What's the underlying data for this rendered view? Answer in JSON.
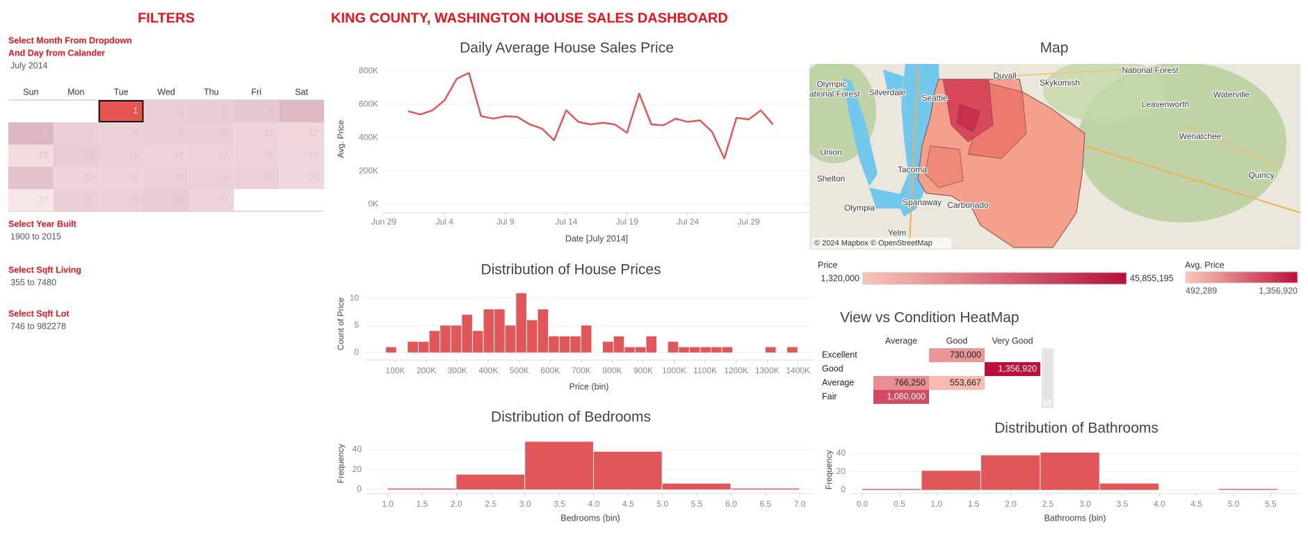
{
  "header": {
    "filters_title": "FILTERS",
    "title": "KING COUNTY, WASHINGTON HOUSE SALES DASHBOARD"
  },
  "filters": [
    {
      "label": [
        "Select Month From Dropdown",
        "And Day from Calander"
      ],
      "value": "July 2014"
    },
    {
      "label": [
        "Select Year Built"
      ],
      "value": "1900 to 2015"
    },
    {
      "label": [
        "Select Sqft Living"
      ],
      "value": "355 to 7480"
    },
    {
      "label": [
        "Select Sqft Lot"
      ],
      "value": "746 to 982278"
    }
  ],
  "calendar": {
    "weekdays": [
      "Sun",
      "Mon",
      "Tue",
      "Wed",
      "Thu",
      "Fri",
      "Sat"
    ],
    "days": [
      1,
      2,
      3,
      4,
      5,
      6,
      7,
      8,
      9,
      10,
      11,
      12,
      13,
      14,
      15,
      16,
      17,
      18,
      19,
      20,
      21,
      22,
      23,
      24,
      25,
      26,
      27,
      28,
      29,
      30,
      31
    ],
    "selected": 1
  },
  "chart_data": [
    {
      "type": "line",
      "title": "Daily Average House Sales Price",
      "x_label": "Date [July 2014]",
      "y_label": "Avg. Price",
      "color": "#e15759",
      "grid": true,
      "x": [
        "2014-07-01",
        "2014-07-02",
        "2014-07-03",
        "2014-07-04",
        "2014-07-05",
        "2014-07-06",
        "2014-07-07",
        "2014-07-08",
        "2014-07-09",
        "2014-07-10",
        "2014-07-11",
        "2014-07-12",
        "2014-07-13",
        "2014-07-14",
        "2014-07-15",
        "2014-07-16",
        "2014-07-17",
        "2014-07-18",
        "2014-07-19",
        "2014-07-20",
        "2014-07-21",
        "2014-07-22",
        "2014-07-23",
        "2014-07-24",
        "2014-07-25",
        "2014-07-26",
        "2014-07-27",
        "2014-07-28",
        "2014-07-29",
        "2014-07-30",
        "2014-07-31"
      ],
      "values": [
        560000,
        540000,
        565000,
        625000,
        755000,
        790000,
        530000,
        515000,
        530000,
        525000,
        480000,
        455000,
        385000,
        565000,
        495000,
        480000,
        490000,
        480000,
        430000,
        665000,
        480000,
        475000,
        515000,
        495000,
        505000,
        435000,
        275000,
        520000,
        510000,
        565000,
        480000
      ],
      "xlim": [
        "2014-06-29",
        "2014-08-03"
      ],
      "xticks": [
        {
          "value": "2014-06-29",
          "label": "Jun 29"
        },
        {
          "value": "2014-07-04",
          "label": "Jul 4"
        },
        {
          "value": "2014-07-09",
          "label": "Jul 9"
        },
        {
          "value": "2014-07-14",
          "label": "Jul 14"
        },
        {
          "value": "2014-07-19",
          "label": "Jul 19"
        },
        {
          "value": "2014-07-24",
          "label": "Jul 24"
        },
        {
          "value": "2014-07-29",
          "label": "Jul 29"
        }
      ],
      "ylim": [
        -50000,
        835000
      ],
      "yticks": [
        {
          "value": 0,
          "label": "0K"
        },
        {
          "value": 200000,
          "label": "200K"
        },
        {
          "value": 400000,
          "label": "400K"
        },
        {
          "value": 600000,
          "label": "600K"
        },
        {
          "value": 800000,
          "label": "800K"
        }
      ]
    },
    {
      "type": "histogram",
      "title": "Distribution of House Prices",
      "x_label": "Price (bin)",
      "y_label": "Count of Price",
      "color": "#e15759",
      "grid": true,
      "bins": [
        70000,
        105000,
        140000,
        175000,
        210000,
        245000,
        280000,
        315000,
        350000,
        385000,
        420000,
        455000,
        490000,
        525000,
        560000,
        595000,
        630000,
        665000,
        700000,
        735000,
        770000,
        805000,
        840000,
        875000,
        910000,
        945000,
        980000,
        1015000,
        1050000,
        1085000,
        1120000,
        1155000,
        1190000,
        1225000,
        1260000,
        1295000,
        1330000,
        1365000,
        1400000
      ],
      "values": [
        1,
        0,
        2,
        2,
        4,
        5,
        5,
        7,
        4,
        8,
        8,
        5,
        11,
        6,
        8,
        3,
        3,
        3,
        5,
        0,
        2,
        3,
        1,
        1,
        3,
        0,
        2,
        1,
        1,
        1,
        1,
        1,
        0,
        0,
        0,
        1,
        0,
        1
      ],
      "xlim": [
        0,
        1450000
      ],
      "xticks": [
        {
          "value": 100000,
          "label": "100K"
        },
        {
          "value": 200000,
          "label": "200K"
        },
        {
          "value": 300000,
          "label": "300K"
        },
        {
          "value": 400000,
          "label": "400K"
        },
        {
          "value": 500000,
          "label": "500K"
        },
        {
          "value": 600000,
          "label": "600K"
        },
        {
          "value": 700000,
          "label": "700K"
        },
        {
          "value": 800000,
          "label": "800K"
        },
        {
          "value": 900000,
          "label": "900K"
        },
        {
          "value": 1000000,
          "label": "1000K"
        },
        {
          "value": 1100000,
          "label": "1100K"
        },
        {
          "value": 1200000,
          "label": "1200K"
        },
        {
          "value": 1300000,
          "label": "1300K"
        },
        {
          "value": 1400000,
          "label": "1400K"
        }
      ],
      "ylim": [
        -1.4,
        12
      ],
      "yticks": [
        0,
        5,
        10
      ]
    },
    {
      "type": "histogram",
      "title": "Distribution of Bedrooms",
      "x_label": "Bedrooms (bin)",
      "y_label": "Frequency",
      "color": "#e15759",
      "grid": true,
      "bins": [
        1,
        2,
        3,
        4,
        5,
        6,
        7
      ],
      "values": [
        1,
        15,
        48,
        38,
        6,
        1
      ],
      "xlim": [
        0.7,
        7.2
      ],
      "xticks": [
        {
          "value": 1,
          "label": "1.0"
        },
        1.5,
        {
          "value": 2,
          "label": "2.0"
        },
        2.5,
        {
          "value": 3,
          "label": "3.0"
        },
        3.5,
        {
          "value": 4,
          "label": "4.0"
        },
        4.5,
        {
          "value": 5,
          "label": "5.0"
        },
        5.5,
        {
          "value": 6,
          "label": "6.0"
        },
        6.5,
        {
          "value": 7,
          "label": "7.0"
        }
      ],
      "ylim": [
        -4,
        56
      ],
      "yticks": [
        0,
        20,
        40
      ]
    },
    {
      "type": "histogram",
      "title": "Distribution of Bathrooms",
      "x_label": "Bathrooms (bin)",
      "y_label": "Frequency",
      "color": "#e15759",
      "grid": true,
      "bins": [
        0,
        0.8,
        1.6,
        2.4,
        3.2,
        4.0,
        4.8,
        5.6
      ],
      "values": [
        1,
        21,
        38,
        41,
        7,
        0,
        1
      ],
      "xlim": [
        -0.15,
        5.88
      ],
      "xticks": [
        {
          "value": 0,
          "label": "0.0"
        },
        0.5,
        {
          "value": 1,
          "label": "1.0"
        },
        1.5,
        {
          "value": 2,
          "label": "2.0"
        },
        2.5,
        {
          "value": 3,
          "label": "3.0"
        },
        3.5,
        {
          "value": 4,
          "label": "4.0"
        },
        4.5,
        {
          "value": 5,
          "label": "5.0"
        },
        5.5
      ],
      "ylim": [
        -4,
        48
      ],
      "yticks": [
        0,
        20,
        40
      ]
    }
  ],
  "map": {
    "title": "Map",
    "places": [
      "Olympic",
      "National Forest",
      "Silverdale",
      "Seattle",
      "Duvall",
      "Skykomish",
      "National Forest",
      "Leavenworth",
      "Waterville",
      "Wenatchee",
      "Union",
      "Tacoma",
      "Shelton",
      "Quincy",
      "Olympia",
      "Spanaway",
      "Carbonado",
      "Yelm"
    ],
    "attribution": "© 2024 Mapbox © OpenStreetMap",
    "legend": {
      "title": "Price",
      "min": 1320000,
      "max": 45855195,
      "min_label": "1,320,000",
      "max_label": "45,855,195",
      "colors": [
        "#fcc5b5",
        "#b3113c"
      ]
    }
  },
  "heatmap": {
    "title": "View vs Condition HeatMap",
    "columns": [
      "Average",
      "Good",
      "Very Good"
    ],
    "rows": [
      "Excellent",
      "Good",
      "Average",
      "Fair"
    ],
    "values": [
      [
        null,
        730000,
        null
      ],
      [
        null,
        null,
        1356920
      ],
      [
        766250,
        553667,
        null
      ],
      [
        1080000,
        null,
        null
      ]
    ],
    "value_labels": [
      [
        null,
        "730,000",
        null
      ],
      [
        null,
        null,
        "1,356,920"
      ],
      [
        "766,250",
        "553,667",
        null
      ],
      [
        "1,080,000",
        null,
        null
      ]
    ],
    "legend": {
      "title": "Avg. Price",
      "min": 492289,
      "max": 1356920,
      "min_label": "492,289",
      "max_label": "1,356,920",
      "colors": [
        "#fbc8b8",
        "#be0f3b"
      ]
    }
  }
}
